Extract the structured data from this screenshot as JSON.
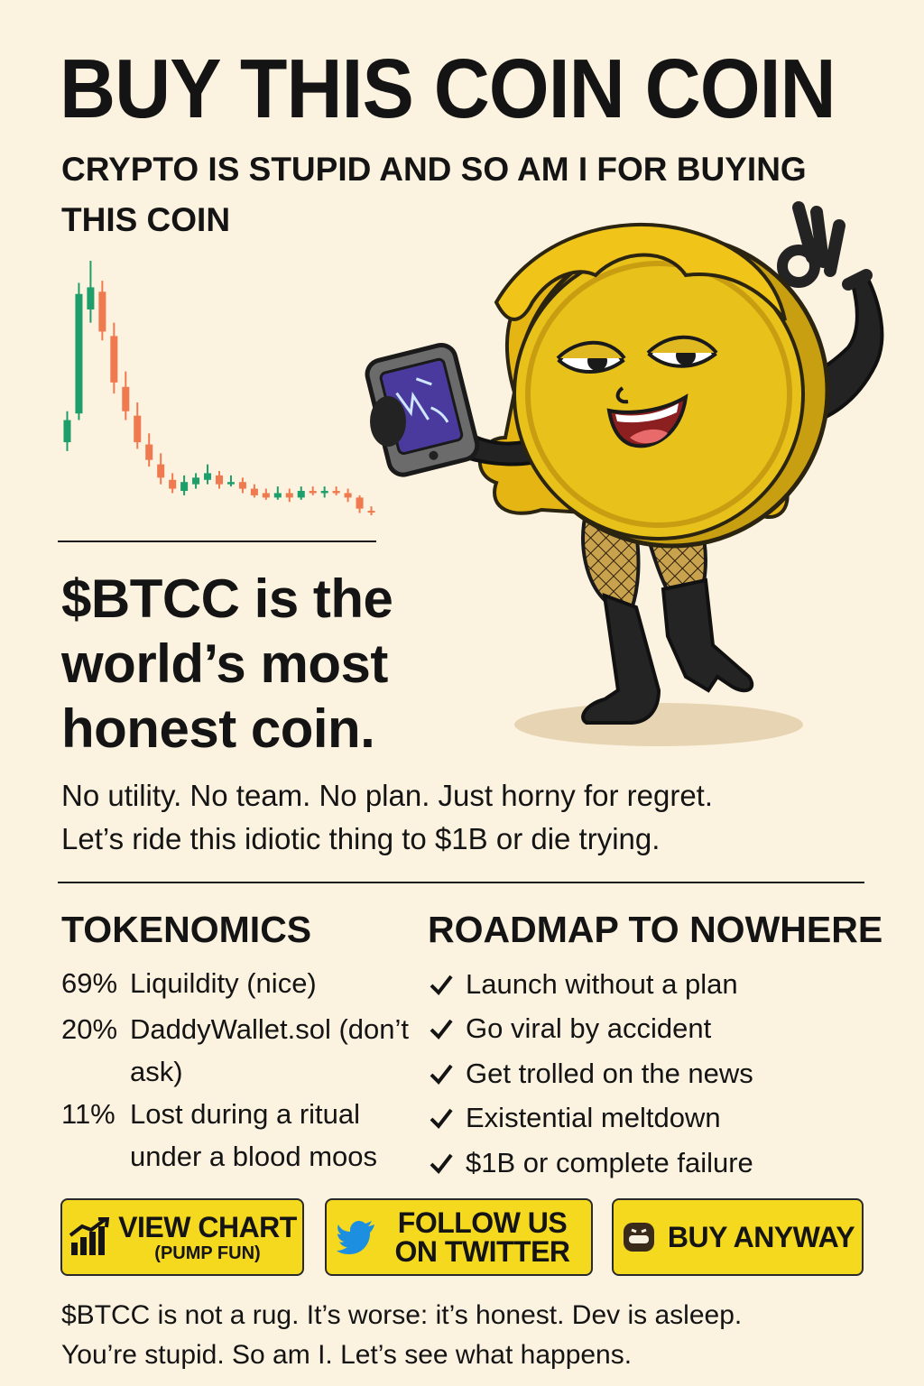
{
  "header": {
    "title": "BUY THIS COIN COIN",
    "subtitle": "CRYPTO IS STUPID AND SO AM I FOR BUYING THIS COIN"
  },
  "chart_data": {
    "type": "candlestick",
    "candles": [
      {
        "open": 28,
        "close": 38,
        "high": 42,
        "low": 24
      },
      {
        "open": 41,
        "close": 95,
        "high": 100,
        "low": 38
      },
      {
        "open": 88,
        "close": 98,
        "high": 110,
        "low": 82
      },
      {
        "open": 96,
        "close": 78,
        "high": 101,
        "low": 74
      },
      {
        "open": 76,
        "close": 55,
        "high": 82,
        "low": 50
      },
      {
        "open": 53,
        "close": 42,
        "high": 60,
        "low": 38
      },
      {
        "open": 40,
        "close": 28,
        "high": 46,
        "low": 25
      },
      {
        "open": 27,
        "close": 20,
        "high": 32,
        "low": 17
      },
      {
        "open": 18,
        "close": 12,
        "high": 23,
        "low": 9
      },
      {
        "open": 11,
        "close": 7,
        "high": 14,
        "low": 5
      },
      {
        "open": 6,
        "close": 10,
        "high": 13,
        "low": 4
      },
      {
        "open": 9,
        "close": 12,
        "high": 14,
        "low": 7
      },
      {
        "open": 11,
        "close": 14,
        "high": 18,
        "low": 9
      },
      {
        "open": 13,
        "close": 9,
        "high": 15,
        "low": 7
      },
      {
        "open": 9,
        "close": 10,
        "high": 13,
        "low": 8
      },
      {
        "open": 10,
        "close": 7,
        "high": 12,
        "low": 5
      },
      {
        "open": 7,
        "close": 4,
        "high": 9,
        "low": 3
      },
      {
        "open": 5,
        "close": 3,
        "high": 7,
        "low": 2
      },
      {
        "open": 3,
        "close": 5,
        "high": 8,
        "low": 2
      },
      {
        "open": 5,
        "close": 3,
        "high": 7,
        "low": 1
      },
      {
        "open": 3,
        "close": 6,
        "high": 8,
        "low": 2
      },
      {
        "open": 6,
        "close": 5,
        "high": 8,
        "low": 4
      },
      {
        "open": 5,
        "close": 6,
        "high": 8,
        "low": 3
      },
      {
        "open": 6,
        "close": 5,
        "high": 8,
        "low": 4
      },
      {
        "open": 5,
        "close": 3,
        "high": 7,
        "low": 1
      },
      {
        "open": 3,
        "close": -2,
        "high": 4,
        "low": -4
      },
      {
        "open": -3,
        "close": -3.5,
        "high": -1,
        "low": -5
      }
    ],
    "colors": {
      "up": "#1e9e6a",
      "down": "#f07a50"
    }
  },
  "hero": {
    "headline": "$BTCC is the world’s most honest coin.",
    "tagline_line1": "No utility. No team. No plan. Just horny for regret.",
    "tagline_line2": "Let’s ride this idiotic thing to $1B or die trying."
  },
  "tokenomics": {
    "heading": "TOKENOMICS",
    "items": [
      {
        "pct": "69%",
        "label": "Liqui​ldity (nice)"
      },
      {
        "pct": "20%",
        "label": "DaddyWallet.sol (don’t ask)"
      },
      {
        "pct": "11%",
        "label": "Lost during a ritual under a blood moos"
      }
    ]
  },
  "roadmap": {
    "heading": "ROADMAP TO NOWHERE",
    "items": [
      "Launch without a plan",
      "Go viral by accident",
      "Get trolled on the news",
      "Existential meltdown",
      "$1B or complete failure"
    ]
  },
  "buttons": {
    "chart": {
      "label": "VIEW CHART",
      "sub": "(PUMP FUN)",
      "icon": "bar-chart-up-icon"
    },
    "twitter": {
      "label": "FOLLOW US ON TWITTER",
      "icon": "twitter-bird-icon"
    },
    "buy": {
      "label": "BUY ANYWAY",
      "icon": "shrug-face-icon"
    }
  },
  "footer": {
    "line1": "$BTCC is not a rug. It’s worse: it’s honest. Dev is asleep.",
    "line2": "You’re stupid. So am I. Let’s see what happens."
  },
  "colors": {
    "background": "#fcf2e0",
    "button": "#f5d91e",
    "text": "#141414",
    "coin": "#e8c21a",
    "twitter": "#1d8fe0"
  }
}
